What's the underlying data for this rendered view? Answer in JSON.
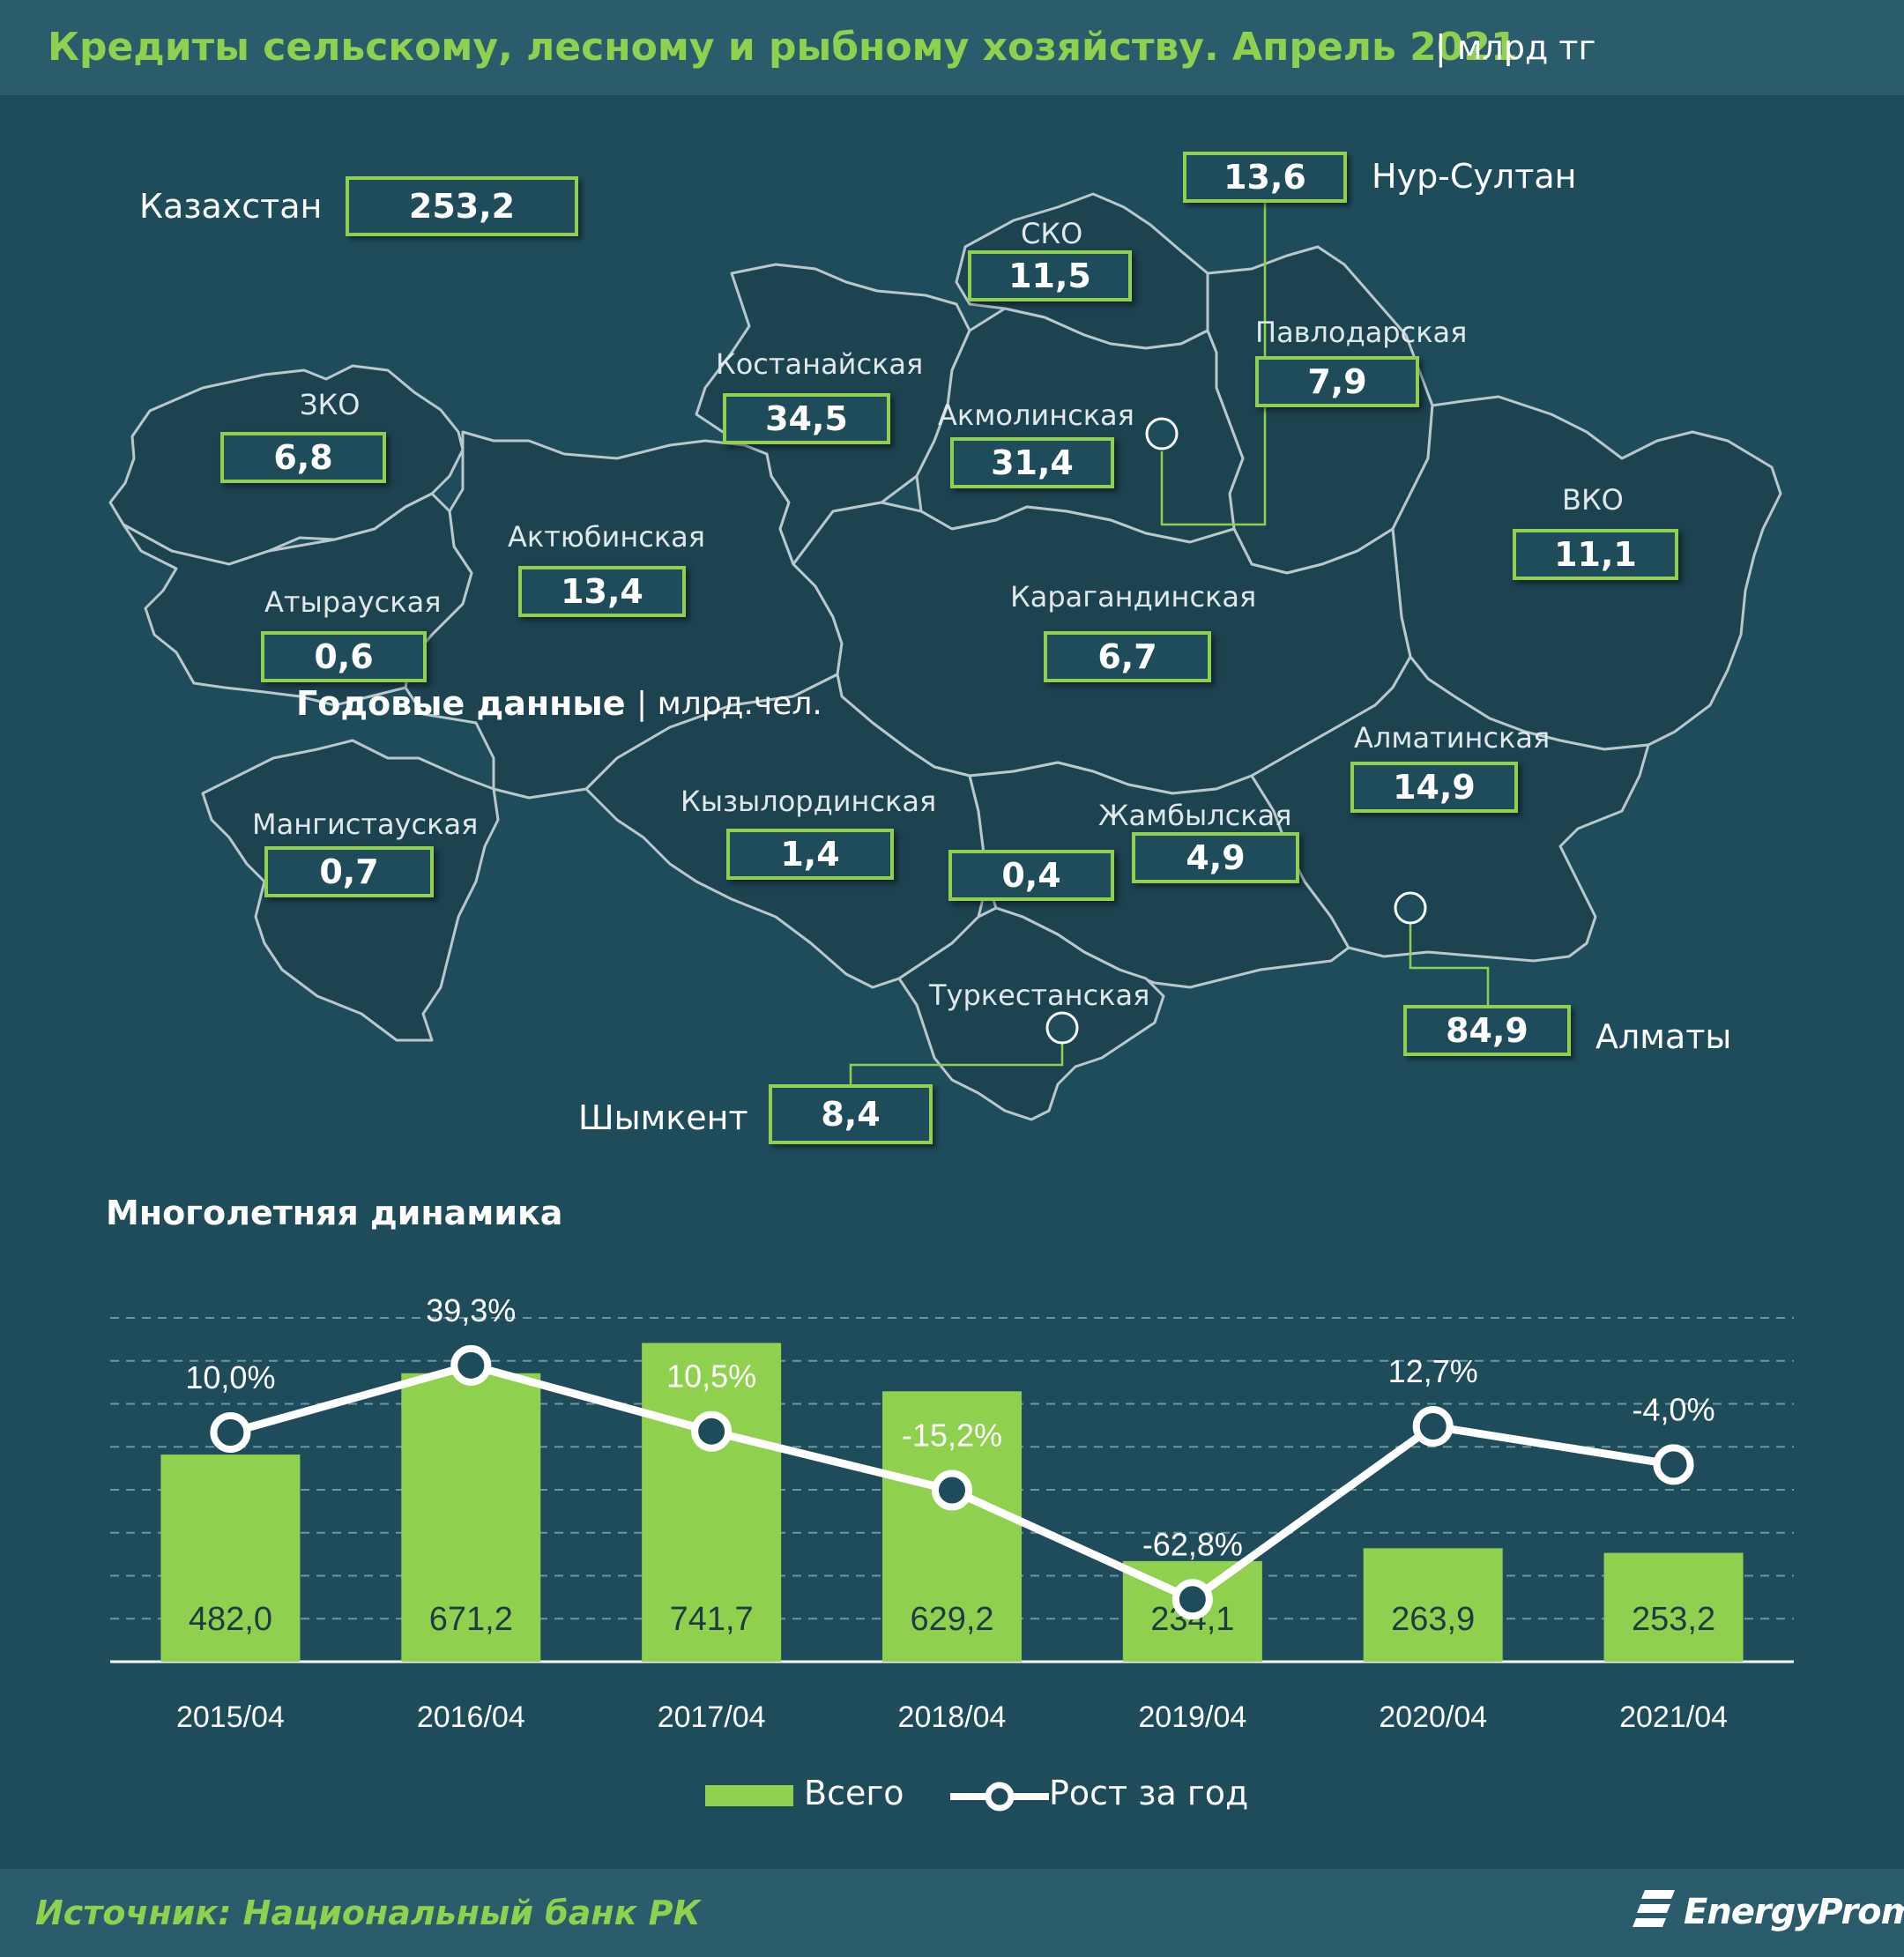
{
  "header": {
    "title": "Кредиты сельскому, лесному и рыбному хозяйству.  Апрель 2021",
    "unit": "| млрд тг"
  },
  "kazakhstan": {
    "label": "Казахстан",
    "value": "253,2"
  },
  "regions": {
    "nur_sultan": {
      "name": "Нур-Султан",
      "value": "13,6"
    },
    "sko": {
      "name": "СКО",
      "value": "11,5"
    },
    "pavlodar": {
      "name": "Павлодарская",
      "value": "7,9"
    },
    "kostanay": {
      "name": "Костанайская",
      "value": "34,5"
    },
    "akmola": {
      "name": "Акмолинская",
      "value": "31,4"
    },
    "zko": {
      "name": "ЗКО",
      "value": "6,8"
    },
    "aktobe": {
      "name": "Актюбинская",
      "value": "13,4"
    },
    "vko": {
      "name": "ВКО",
      "value": "11,1"
    },
    "atyrau": {
      "name": "Атырауская",
      "value": "0,6"
    },
    "karaganda": {
      "name": "Карагандинская",
      "value": "6,7"
    },
    "almaty_obl": {
      "name": "Алматинская",
      "value": "14,9"
    },
    "mangistau": {
      "name": "Мангистауская",
      "value": "0,7"
    },
    "kyzylorda": {
      "name": "Кызылординская",
      "value": "1,4"
    },
    "unlabeled": {
      "value": "0,4"
    },
    "zhambyl": {
      "name": "Жамбылская",
      "value": "4,9"
    },
    "turkestan": {
      "name": "Туркестанская"
    },
    "almaty": {
      "name": "Алматы",
      "value": "84,9"
    },
    "shymkent": {
      "name": "Шымкент",
      "value": "8,4"
    }
  },
  "annual": {
    "title": "Годовые данные",
    "unit": "| млрд.чел."
  },
  "dynamics": {
    "title": "Многолетняя  динамика"
  },
  "legend": {
    "bars": "Всего",
    "line": "Рост за год"
  },
  "colors": {
    "background": "#1f4c5b",
    "accent": "#8fd14f",
    "line": "#ffffff",
    "region_fill": "#1d4250",
    "region_border": "#b8c8cd"
  },
  "chart_data": {
    "type": "bar",
    "title": "Многолетняя  динамика",
    "categories": [
      "2015/04",
      "2016/04",
      "2017/04",
      "2018/04",
      "2019/04",
      "2020/04",
      "2021/04"
    ],
    "series": [
      {
        "name": "Всего",
        "type": "bar",
        "values": [
          482.0,
          671.2,
          741.7,
          629.2,
          234.1,
          263.9,
          253.2
        ],
        "labels": [
          "482,0",
          "671,2",
          "741,7",
          "629,2",
          "234,1",
          "263,9",
          "253,2"
        ]
      },
      {
        "name": "Рост за год",
        "type": "line",
        "values": [
          10.0,
          39.3,
          10.5,
          -15.2,
          -62.8,
          12.7,
          -4.0
        ],
        "labels": [
          "10,0%",
          "39,3%",
          "10,5%",
          "-15,2%",
          "-62,8%",
          "12,7%",
          "-4,0%"
        ]
      }
    ],
    "ylim": [
      0,
      800
    ],
    "y2lim": [
      -90,
      60
    ],
    "grid": true,
    "legend_position": "bottom"
  },
  "footer": {
    "source": "Источник: Национальный  банк РК",
    "brand": "EnergyProm"
  }
}
